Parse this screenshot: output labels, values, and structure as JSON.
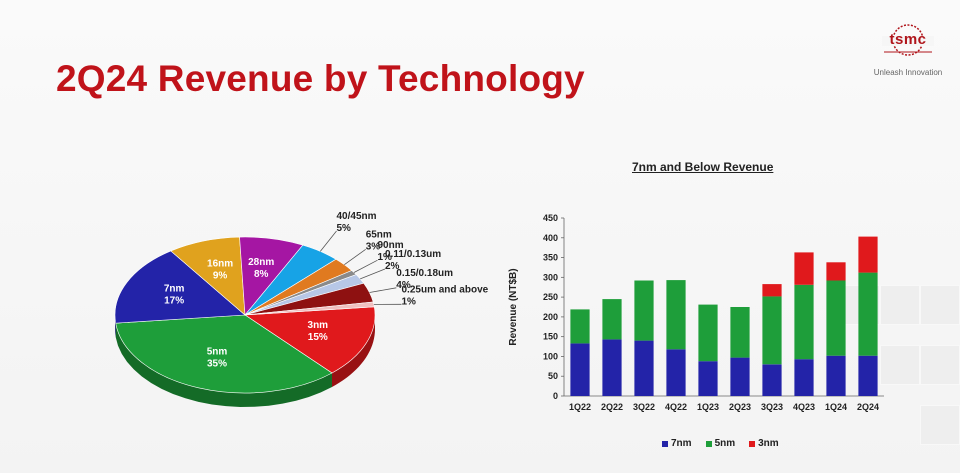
{
  "slide": {
    "title": "2Q24 Revenue by Technology",
    "logo": {
      "wordmark": "tsmc",
      "tagline": "Unleash Innovation"
    }
  },
  "colors": {
    "title_red": "#c0131a",
    "n7_blue": "#2323a8",
    "n5_green": "#1e9e3a",
    "n3_red": "#e0191c"
  },
  "chart_data": [
    {
      "type": "pie",
      "title": "",
      "slices": [
        {
          "label": "3nm",
          "value": 15,
          "value_label": "15%",
          "color": "#e0191c"
        },
        {
          "label": "5nm",
          "value": 35,
          "value_label": "35%",
          "color": "#1e9e3a"
        },
        {
          "label": "7nm",
          "value": 17,
          "value_label": "17%",
          "color": "#2323a8"
        },
        {
          "label": "16nm",
          "value": 9,
          "value_label": "9%",
          "color": "#e0a21e"
        },
        {
          "label": "28nm",
          "value": 8,
          "value_label": "8%",
          "color": "#a516a3"
        },
        {
          "label": "40/45nm",
          "value": 5,
          "value_label": "5%",
          "color": "#17a3e6"
        },
        {
          "label": "65nm",
          "value": 3,
          "value_label": "3%",
          "color": "#e07a20"
        },
        {
          "label": "90nm",
          "value": 1,
          "value_label": "1%",
          "color": "#8a8a8a"
        },
        {
          "label": "0.11/0.13um",
          "value": 2,
          "value_label": "2%",
          "color": "#b7c7e6"
        },
        {
          "label": "0.15/0.18um",
          "value": 4,
          "value_label": "4%",
          "color": "#8e1111"
        },
        {
          "label": "0.25um and above",
          "value": 1,
          "value_label": "1%",
          "color": "#f0c0c0"
        }
      ]
    },
    {
      "type": "bar",
      "stacked": true,
      "title": "7nm and Below Revenue",
      "xlabel": "",
      "ylabel": "Revenue (NT$B)",
      "ylim": [
        0,
        450
      ],
      "yticks": [
        0,
        50,
        100,
        150,
        200,
        250,
        300,
        350,
        400,
        450
      ],
      "grid": false,
      "legend_position": "bottom",
      "categories": [
        "1Q22",
        "2Q22",
        "3Q22",
        "4Q22",
        "1Q23",
        "2Q23",
        "3Q23",
        "4Q23",
        "1Q24",
        "2Q24"
      ],
      "series": [
        {
          "name": "7nm",
          "color": "#2323a8",
          "values": [
            133,
            143,
            140,
            118,
            88,
            97,
            80,
            93,
            102,
            102
          ]
        },
        {
          "name": "5nm",
          "color": "#1e9e3a",
          "values": [
            86,
            102,
            152,
            175,
            143,
            128,
            172,
            188,
            190,
            210
          ]
        },
        {
          "name": "3nm",
          "color": "#e0191c",
          "values": [
            0,
            0,
            0,
            0,
            0,
            0,
            31,
            82,
            46,
            91
          ]
        }
      ]
    }
  ]
}
